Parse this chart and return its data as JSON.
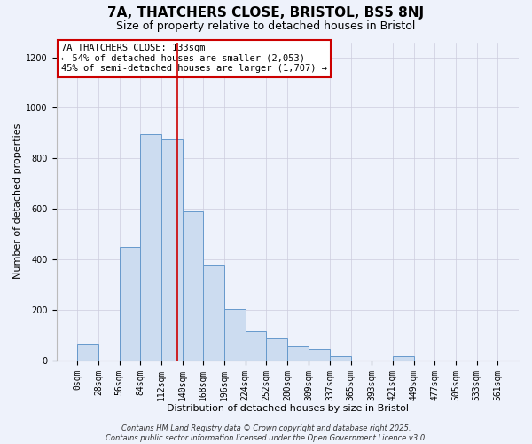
{
  "title": "7A, THATCHERS CLOSE, BRISTOL, BS5 8NJ",
  "subtitle": "Size of property relative to detached houses in Bristol",
  "xlabel": "Distribution of detached houses by size in Bristol",
  "ylabel": "Number of detached properties",
  "bin_edges": [
    0,
    28,
    56,
    84,
    112,
    140,
    168,
    196,
    224,
    252,
    280,
    309,
    337,
    365,
    393,
    421,
    449,
    477,
    505,
    533,
    561
  ],
  "bin_labels": [
    "0sqm",
    "28sqm",
    "56sqm",
    "84sqm",
    "112sqm",
    "140sqm",
    "168sqm",
    "196sqm",
    "224sqm",
    "252sqm",
    "280sqm",
    "309sqm",
    "337sqm",
    "365sqm",
    "393sqm",
    "421sqm",
    "449sqm",
    "477sqm",
    "505sqm",
    "533sqm",
    "561sqm"
  ],
  "counts": [
    65,
    0,
    450,
    895,
    875,
    590,
    380,
    205,
    115,
    88,
    55,
    45,
    18,
    0,
    0,
    18,
    0,
    0,
    0,
    0
  ],
  "bar_facecolor": "#ccdcf0",
  "bar_edgecolor": "#6699cc",
  "vline_x": 133,
  "vline_color": "#cc0000",
  "ylim": [
    0,
    1260
  ],
  "yticks": [
    0,
    200,
    400,
    600,
    800,
    1000,
    1200
  ],
  "annotation_title": "7A THATCHERS CLOSE: 133sqm",
  "annotation_line1": "← 54% of detached houses are smaller (2,053)",
  "annotation_line2": "45% of semi-detached houses are larger (1,707) →",
  "annotation_box_facecolor": "#ffffff",
  "annotation_box_edgecolor": "#cc0000",
  "footer1": "Contains HM Land Registry data © Crown copyright and database right 2025.",
  "footer2": "Contains public sector information licensed under the Open Government Licence v3.0.",
  "background_color": "#eef2fb",
  "title_fontsize": 11,
  "subtitle_fontsize": 9,
  "axis_label_fontsize": 8,
  "tick_fontsize": 7,
  "annotation_fontsize": 7.5,
  "footer_fontsize": 6
}
